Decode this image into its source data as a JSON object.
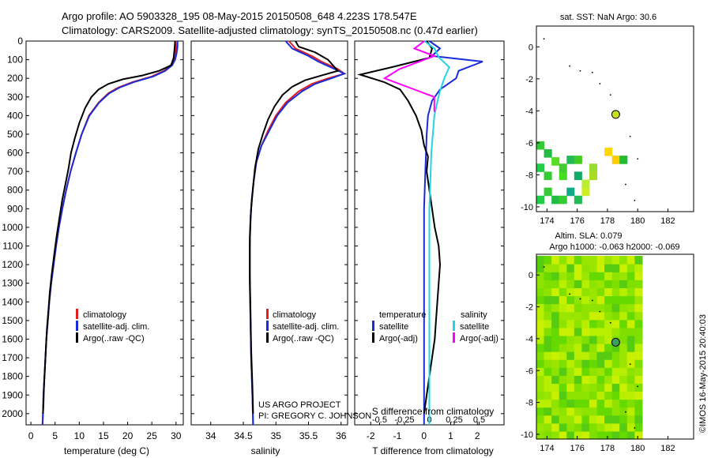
{
  "header": {
    "line1": "Argo profile: AO 5903328_195 08-May-2015 20150508_648 4.223S 178.547E",
    "line2": "Climatology: CARS2009. Satellite-adjusted climatology: synTS_20150508.nc (0.47d earlier)"
  },
  "colors": {
    "climatology": "#e02020",
    "satellite": "#1a2bd8",
    "argo": "#000000",
    "sal_sat": "#22d4e6",
    "sal_argo": "#ff00ff"
  },
  "chart_data": [
    {
      "id": "temperature",
      "type": "line",
      "xlabel": "temperature (deg C)",
      "ylabel": "",
      "xlim": [
        -1,
        31.5
      ],
      "ylim": [
        2060,
        0
      ],
      "xticks": [
        0,
        5,
        10,
        15,
        20,
        25,
        30
      ],
      "yticks": [
        0,
        100,
        200,
        300,
        400,
        500,
        600,
        700,
        800,
        900,
        1000,
        1100,
        1200,
        1300,
        1400,
        1500,
        1600,
        1700,
        1800,
        1900,
        2000
      ],
      "legend": [
        "climatology",
        "satellite-adj. clim.",
        "Argo(..raw -QC)"
      ],
      "series": [
        {
          "name": "climatology",
          "color": "#e02020",
          "points": [
            [
              29.9,
              0
            ],
            [
              30,
              30
            ],
            [
              29.8,
              70
            ],
            [
              29.5,
              100
            ],
            [
              28.9,
              130
            ],
            [
              27.5,
              160
            ],
            [
              25,
              190
            ],
            [
              21,
              220
            ],
            [
              18,
              250
            ],
            [
              16,
              280
            ],
            [
              14,
              330
            ],
            [
              12,
              400
            ],
            [
              10.5,
              500
            ],
            [
              9.3,
              600
            ],
            [
              8.2,
              700
            ],
            [
              7.3,
              800
            ],
            [
              6.5,
              900
            ],
            [
              5.8,
              1000
            ],
            [
              5.2,
              1100
            ],
            [
              4.7,
              1200
            ],
            [
              4.2,
              1300
            ],
            [
              3.8,
              1400
            ],
            [
              3.5,
              1500
            ],
            [
              3.2,
              1600
            ],
            [
              3,
              1700
            ],
            [
              2.8,
              1800
            ],
            [
              2.6,
              1900
            ],
            [
              2.5,
              2000
            ],
            [
              2.4,
              2060
            ]
          ]
        },
        {
          "name": "satellite-adj. clim.",
          "color": "#1a2bd8",
          "points": [
            [
              30.3,
              0
            ],
            [
              30.3,
              30
            ],
            [
              30.1,
              70
            ],
            [
              29.8,
              100
            ],
            [
              29.2,
              130
            ],
            [
              27.8,
              160
            ],
            [
              25.3,
              190
            ],
            [
              21.3,
              220
            ],
            [
              18.3,
              250
            ],
            [
              16.2,
              280
            ],
            [
              14.1,
              330
            ],
            [
              12.1,
              400
            ],
            [
              10.5,
              500
            ],
            [
              9.3,
              600
            ],
            [
              8.2,
              700
            ],
            [
              7.3,
              800
            ],
            [
              6.5,
              900
            ],
            [
              5.8,
              1000
            ],
            [
              5.2,
              1100
            ],
            [
              4.7,
              1200
            ],
            [
              4.2,
              1300
            ],
            [
              3.8,
              1400
            ],
            [
              3.5,
              1500
            ],
            [
              3.2,
              1600
            ],
            [
              3,
              1700
            ],
            [
              2.8,
              1800
            ],
            [
              2.6,
              1900
            ],
            [
              2.5,
              2000
            ],
            [
              2.4,
              2060
            ]
          ]
        },
        {
          "name": "Argo(..raw -QC)",
          "color": "#000000",
          "points": [
            [
              29.8,
              0
            ],
            [
              29.7,
              40
            ],
            [
              29.5,
              90
            ],
            [
              29,
              130
            ],
            [
              26.5,
              160
            ],
            [
              23,
              185
            ],
            [
              19,
              205
            ],
            [
              16,
              230
            ],
            [
              14,
              260
            ],
            [
              12.5,
              300
            ],
            [
              11.2,
              360
            ],
            [
              10,
              440
            ],
            [
              9.1,
              520
            ],
            [
              8.3,
              600
            ],
            [
              7.8,
              680
            ],
            [
              7.2,
              760
            ],
            [
              6.5,
              850
            ],
            [
              5.9,
              950
            ],
            [
              5.3,
              1050
            ],
            [
              4.8,
              1150
            ],
            [
              4.3,
              1250
            ],
            [
              3.9,
              1350
            ],
            [
              3.6,
              1450
            ],
            [
              3.3,
              1550
            ],
            [
              3.1,
              1650
            ],
            [
              2.9,
              1750
            ],
            [
              2.7,
              1850
            ],
            [
              2.6,
              1950
            ],
            [
              2.5,
              2000
            ]
          ]
        }
      ]
    },
    {
      "id": "salinity",
      "type": "line",
      "xlabel": "salinity",
      "xlim": [
        33.7,
        36.1
      ],
      "ylim": [
        2060,
        0
      ],
      "xticks": [
        34,
        34.5,
        35,
        35.5,
        36
      ],
      "legend": [
        "climatology",
        "satellite-adj. clim.",
        "Argo(..raw -QC)"
      ],
      "series": [
        {
          "name": "climatology",
          "color": "#e02020",
          "points": [
            [
              35.2,
              0
            ],
            [
              35.3,
              40
            ],
            [
              35.55,
              80
            ],
            [
              35.7,
              110
            ],
            [
              35.95,
              150
            ],
            [
              36.05,
              175
            ],
            [
              35.8,
              200
            ],
            [
              35.55,
              230
            ],
            [
              35.35,
              270
            ],
            [
              35.15,
              330
            ],
            [
              35,
              400
            ],
            [
              34.88,
              480
            ],
            [
              34.78,
              560
            ],
            [
              34.7,
              650
            ],
            [
              34.66,
              750
            ],
            [
              34.63,
              850
            ],
            [
              34.61,
              950
            ],
            [
              34.6,
              1100
            ],
            [
              34.6,
              1300
            ],
            [
              34.61,
              1500
            ],
            [
              34.62,
              1700
            ],
            [
              34.64,
              1900
            ],
            [
              34.65,
              2060
            ]
          ]
        },
        {
          "name": "satellite-adj. clim.",
          "color": "#1a2bd8",
          "points": [
            [
              35.15,
              0
            ],
            [
              35.25,
              40
            ],
            [
              35.5,
              80
            ],
            [
              35.65,
              110
            ],
            [
              35.9,
              150
            ],
            [
              36.05,
              175
            ],
            [
              35.85,
              200
            ],
            [
              35.6,
              230
            ],
            [
              35.4,
              270
            ],
            [
              35.18,
              330
            ],
            [
              35.02,
              400
            ],
            [
              34.9,
              480
            ],
            [
              34.78,
              560
            ],
            [
              34.7,
              650
            ],
            [
              34.66,
              750
            ],
            [
              34.63,
              850
            ],
            [
              34.61,
              950
            ],
            [
              34.6,
              1100
            ],
            [
              34.6,
              1300
            ],
            [
              34.61,
              1500
            ],
            [
              34.62,
              1700
            ],
            [
              34.64,
              1900
            ],
            [
              34.65,
              2060
            ]
          ]
        },
        {
          "name": "Argo(..raw -QC)",
          "color": "#000000",
          "points": [
            [
              35.3,
              0
            ],
            [
              35.35,
              30
            ],
            [
              35.6,
              60
            ],
            [
              35.8,
              100
            ],
            [
              35.9,
              140
            ],
            [
              35.95,
              160
            ],
            [
              35.7,
              185
            ],
            [
              35.45,
              210
            ],
            [
              35.25,
              245
            ],
            [
              35.1,
              290
            ],
            [
              34.98,
              350
            ],
            [
              34.88,
              420
            ],
            [
              34.8,
              500
            ],
            [
              34.73,
              580
            ],
            [
              34.68,
              680
            ],
            [
              34.65,
              780
            ],
            [
              34.62,
              900
            ],
            [
              34.6,
              1050
            ],
            [
              34.6,
              1250
            ],
            [
              34.61,
              1450
            ],
            [
              34.62,
              1650
            ],
            [
              34.64,
              1850
            ],
            [
              34.65,
              2000
            ]
          ]
        }
      ]
    },
    {
      "id": "difference",
      "type": "line",
      "xlabel": "T difference from climatology",
      "top_label": "S difference from climatology",
      "xlim": [
        -2.6,
        3
      ],
      "ylim": [
        2060,
        0
      ],
      "xticks": [
        -2,
        -1,
        0,
        1,
        2
      ],
      "xticks_top": [
        -0.5,
        -0.25,
        0,
        0.25,
        0.5
      ],
      "legend_left_title": "temperature",
      "legend_right_title": "salinity",
      "legend": [
        "satellite",
        "Argo(-adj)",
        "satellite",
        "Argo(-adj)"
      ],
      "series": [
        {
          "name": "T satellite",
          "color": "#1a2bd8",
          "points": [
            [
              0.2,
              0
            ],
            [
              0.6,
              40
            ],
            [
              0.3,
              80
            ],
            [
              2.2,
              110
            ],
            [
              1.3,
              160
            ],
            [
              1.2,
              200
            ],
            [
              0.6,
              260
            ],
            [
              0.3,
              320
            ],
            [
              0.15,
              400
            ],
            [
              0.1,
              500
            ],
            [
              0.05,
              700
            ],
            [
              0,
              900
            ],
            [
              0,
              1100
            ],
            [
              0,
              1400
            ],
            [
              0,
              1700
            ],
            [
              0,
              2060
            ]
          ]
        },
        {
          "name": "T Argo(-adj)",
          "color": "#000000",
          "points": [
            [
              0.1,
              0
            ],
            [
              0.3,
              40
            ],
            [
              0.2,
              90
            ],
            [
              -1.2,
              140
            ],
            [
              -2.4,
              180
            ],
            [
              -1.5,
              220
            ],
            [
              -0.9,
              260
            ],
            [
              -0.6,
              320
            ],
            [
              -0.3,
              400
            ],
            [
              -0.1,
              480
            ],
            [
              0,
              560
            ],
            [
              0.15,
              620
            ],
            [
              0.1,
              700
            ],
            [
              0.2,
              800
            ],
            [
              0.3,
              900
            ],
            [
              0.4,
              1000
            ],
            [
              0.55,
              1100
            ],
            [
              0.6,
              1200
            ],
            [
              0.55,
              1300
            ],
            [
              0.5,
              1400
            ],
            [
              0.45,
              1500
            ],
            [
              0.4,
              1600
            ],
            [
              0.3,
              1700
            ],
            [
              0.2,
              1800
            ],
            [
              0.1,
              1900
            ],
            [
              0,
              2000
            ]
          ]
        },
        {
          "name": "S satellite",
          "color": "#22d4e6",
          "points": [
            [
              -0.05,
              0
            ],
            [
              0.05,
              40
            ],
            [
              0.1,
              90
            ],
            [
              0.2,
              140
            ],
            [
              0.15,
              200
            ],
            [
              0.1,
              280
            ],
            [
              0.05,
              400
            ],
            [
              0.02,
              600
            ],
            [
              0,
              900
            ],
            [
              0,
              1300
            ],
            [
              0,
              1700
            ],
            [
              0,
              2060
            ]
          ]
        },
        {
          "name": "S Argo(-adj)",
          "color": "#ff00ff",
          "points": [
            [
              -0.05,
              0
            ],
            [
              -0.15,
              40
            ],
            [
              0.05,
              80
            ],
            [
              -0.3,
              150
            ],
            [
              -0.45,
              200
            ],
            [
              -0.2,
              250
            ],
            [
              0.05,
              300
            ],
            [
              0.05,
              380
            ]
          ]
        }
      ]
    },
    {
      "id": "sst_map",
      "type": "heatmap",
      "title": "sat. SST: NaN Argo: 30.6",
      "xlim": [
        173.3,
        183.7
      ],
      "ylim": [
        -10.3,
        1.3
      ],
      "xticks": [
        174,
        176,
        178,
        180,
        182
      ],
      "yticks": [
        0,
        -2,
        -4,
        -6,
        -8,
        -10
      ],
      "argo_position": [
        178.547,
        -4.223
      ]
    },
    {
      "id": "sla_map",
      "type": "heatmap",
      "title": "Altim. SLA: 0.079",
      "subtitle": "Argo h1000: -0.063 h2000: -0.069",
      "xlim": [
        173.3,
        183.7
      ],
      "ylim": [
        -10.3,
        1.3
      ],
      "xticks": [
        174,
        176,
        178,
        180,
        182
      ],
      "yticks": [
        0,
        -2,
        -4,
        -6,
        -8,
        -10
      ],
      "argo_position": [
        178.547,
        -4.223
      ]
    }
  ],
  "annotations": {
    "project_line1": "US ARGO PROJECT",
    "project_line2": "PI: GREGORY C. JOHNSON",
    "imos_credit": "©IMOS 16-May-2015 20:40:03"
  }
}
